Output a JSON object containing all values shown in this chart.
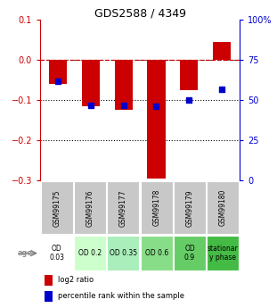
{
  "title": "GDS2588 / 4349",
  "samples": [
    "GSM99175",
    "GSM99176",
    "GSM99177",
    "GSM99178",
    "GSM99179",
    "GSM99180"
  ],
  "log2_ratio": [
    -0.06,
    -0.115,
    -0.125,
    -0.295,
    -0.075,
    0.045
  ],
  "percentile_rank": [
    62,
    47,
    47,
    46,
    50,
    57
  ],
  "bar_color": "#cc0000",
  "dot_color": "#0000cc",
  "ylim_left": [
    -0.3,
    0.1
  ],
  "ylim_right": [
    0,
    100
  ],
  "right_ticks": [
    0,
    25,
    50,
    75,
    100
  ],
  "right_tick_labels": [
    "0",
    "25",
    "50",
    "75",
    "100%"
  ],
  "left_ticks": [
    -0.3,
    -0.2,
    -0.1,
    0.0,
    0.1
  ],
  "dotted_lines": [
    -0.1,
    -0.2
  ],
  "dashed_line": 0.0,
  "age_labels": [
    "OD\n0.03",
    "OD 0.2",
    "OD 0.35",
    "OD 0.6",
    "OD\n0.9",
    "stationar\ny phase"
  ],
  "age_bg_colors": [
    "#ffffff",
    "#ccffcc",
    "#aaeebb",
    "#88dd88",
    "#66cc66",
    "#44bb44"
  ],
  "gsm_bg_color": "#c8c8c8",
  "legend_red": "log2 ratio",
  "legend_blue": "percentile rank within the sample",
  "title_fontsize": 9
}
